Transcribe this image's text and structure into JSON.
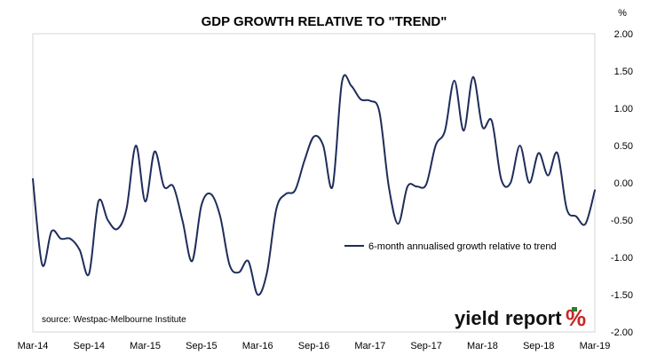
{
  "chart_data": {
    "type": "line",
    "title": "GDP GROWTH RELATIVE TO \"TREND\"",
    "unit_label": "%",
    "ylim": [
      -2.0,
      2.0
    ],
    "y_ticks": [
      2.0,
      1.5,
      1.0,
      0.5,
      0.0,
      -0.5,
      -1.0,
      -1.5,
      -2.0
    ],
    "y_tick_labels": [
      "2.00",
      "1.50",
      "1.00",
      "0.50",
      "0.00",
      "-0.50",
      "-1.00",
      "-1.50",
      "-2.00"
    ],
    "x_tick_labels": [
      "Mar-14",
      "Sep-14",
      "Mar-15",
      "Sep-15",
      "Mar-16",
      "Sep-16",
      "Mar-17",
      "Sep-17",
      "Mar-18",
      "Sep-18",
      "Mar-19"
    ],
    "x_range_months": [
      0,
      60
    ],
    "legend": {
      "placement": "center-right",
      "entry": "6-month annualised growth relative to trend"
    },
    "source": "source: Westpac-Melbourne Institute",
    "series": [
      {
        "name": "6-month annualised growth relative to trend",
        "color": "#1f2d5a",
        "points": [
          [
            0,
            0.05
          ],
          [
            1,
            -1.1
          ],
          [
            2,
            -0.65
          ],
          [
            3,
            -0.75
          ],
          [
            4,
            -0.75
          ],
          [
            5,
            -0.9
          ],
          [
            6,
            -1.22
          ],
          [
            7,
            -0.25
          ],
          [
            8,
            -0.5
          ],
          [
            9,
            -0.62
          ],
          [
            10,
            -0.35
          ],
          [
            11,
            0.5
          ],
          [
            12,
            -0.25
          ],
          [
            13,
            0.42
          ],
          [
            14,
            -0.05
          ],
          [
            15,
            -0.05
          ],
          [
            16,
            -0.52
          ],
          [
            17,
            -1.05
          ],
          [
            18,
            -0.3
          ],
          [
            19,
            -0.15
          ],
          [
            20,
            -0.45
          ],
          [
            21,
            -1.1
          ],
          [
            22,
            -1.2
          ],
          [
            23,
            -1.05
          ],
          [
            24,
            -1.5
          ],
          [
            25,
            -1.2
          ],
          [
            26,
            -0.35
          ],
          [
            27,
            -0.15
          ],
          [
            28,
            -0.1
          ],
          [
            29,
            0.3
          ],
          [
            30,
            0.62
          ],
          [
            31,
            0.5
          ],
          [
            32,
            -0.05
          ],
          [
            33,
            1.35
          ],
          [
            34,
            1.3
          ],
          [
            35,
            1.12
          ],
          [
            36,
            1.1
          ],
          [
            37,
            0.95
          ],
          [
            38,
            -0.05
          ],
          [
            39,
            -0.55
          ],
          [
            40,
            -0.05
          ],
          [
            41,
            -0.05
          ],
          [
            42,
            -0.02
          ],
          [
            43,
            0.5
          ],
          [
            44,
            0.7
          ],
          [
            45,
            1.37
          ],
          [
            46,
            0.7
          ],
          [
            47,
            1.42
          ],
          [
            48,
            0.75
          ],
          [
            49,
            0.83
          ],
          [
            50,
            0.05
          ],
          [
            51,
            0.0
          ],
          [
            52,
            0.5
          ],
          [
            53,
            0.0
          ],
          [
            54,
            0.4
          ],
          [
            55,
            0.1
          ],
          [
            56,
            0.4
          ],
          [
            57,
            -0.35
          ],
          [
            58,
            -0.45
          ],
          [
            59,
            -0.55
          ],
          [
            60,
            -0.1
          ]
        ]
      }
    ]
  },
  "brand": {
    "name_part1": "yield",
    "name_part2": "report",
    "symbol": "%"
  }
}
